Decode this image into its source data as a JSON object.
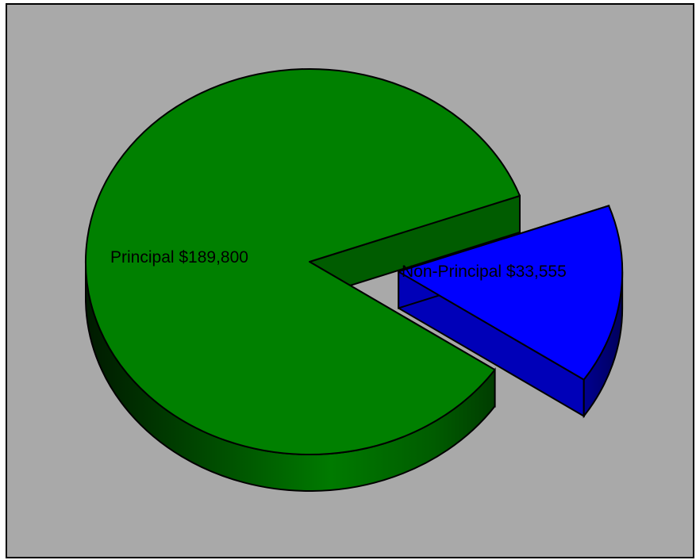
{
  "chart_data": {
    "type": "pie",
    "title": "",
    "style": "3d-exploded",
    "background_color": "#a9a9a9",
    "slices": [
      {
        "label": "Principal $189,800",
        "value": 189800,
        "color": "#008000",
        "exploded": false
      },
      {
        "label": "Non-Principal $33,555",
        "value": 33555,
        "color": "#0000ff",
        "exploded": true
      }
    ]
  }
}
